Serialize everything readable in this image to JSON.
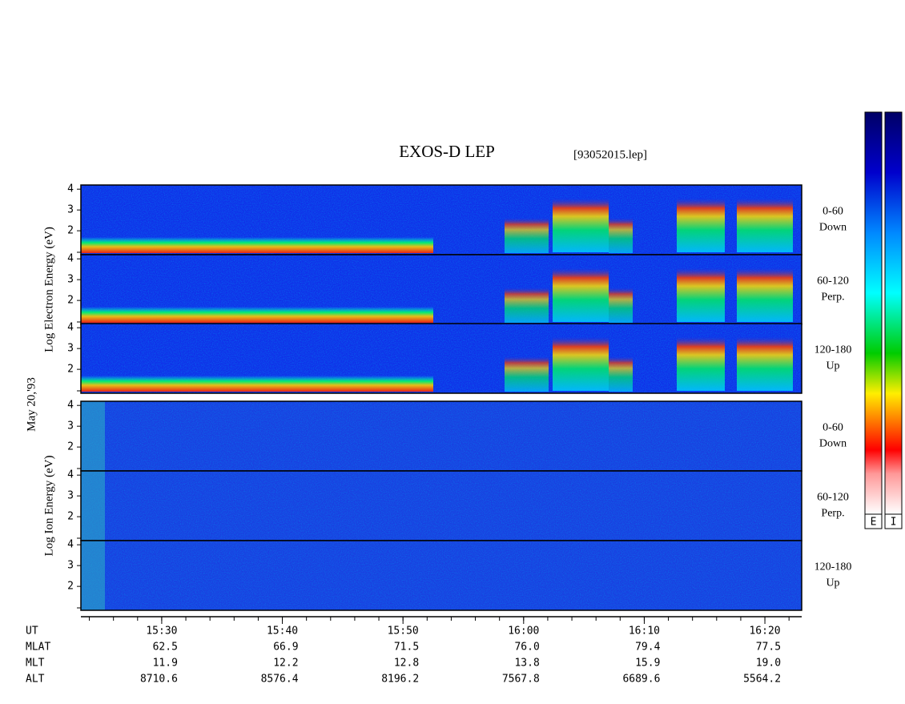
{
  "title": "EXOS-D LEP",
  "file": "[93052015.lep]",
  "date_label": "May 20,'93",
  "groups": [
    {
      "ylabel": "Log  Electron  Energy (eV)",
      "panels": [
        [
          "0-60",
          "Down"
        ],
        [
          "60-120",
          "Perp."
        ],
        [
          "120-180",
          "Up"
        ]
      ]
    },
    {
      "ylabel": "Log  Ion  Energy (eV)",
      "panels": [
        [
          "0-60",
          "Down"
        ],
        [
          "60-120",
          "Perp."
        ],
        [
          "120-180",
          "Up"
        ]
      ]
    }
  ],
  "ylim": [
    0.85,
    4.2
  ],
  "yticks": [
    2,
    3,
    4
  ],
  "xlim": [
    23.3,
    83.05
  ],
  "xticks": [
    {
      "value": 30,
      "label": "15:30"
    },
    {
      "value": 40,
      "label": "15:40"
    },
    {
      "value": 50,
      "label": "15:50"
    },
    {
      "value": 60,
      "label": "16:00"
    },
    {
      "value": 70,
      "label": "16:10"
    },
    {
      "value": 80,
      "label": "16:20"
    }
  ],
  "table": {
    "rows": [
      [
        "UT"
      ],
      [
        "MLAT",
        "62.5",
        "66.9",
        "71.5",
        "76.0",
        "79.4",
        "77.5"
      ],
      [
        "MLT",
        "11.9",
        "12.2",
        "12.8",
        "13.8",
        "15.9",
        "19.0"
      ],
      [
        "ALT",
        "8710.6",
        "8576.4",
        "8196.2",
        "7567.8",
        "6689.6",
        "5564.2"
      ]
    ]
  },
  "colorbar_labels": [
    "E",
    "I"
  ]
}
